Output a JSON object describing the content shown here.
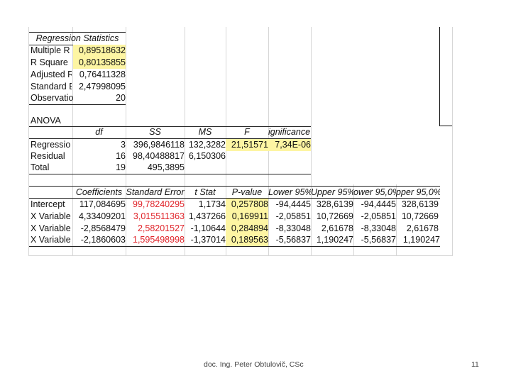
{
  "regression_statistics": {
    "title": "Regression Statistics",
    "rows": [
      {
        "label": "Multiple R",
        "value": "0,89518632"
      },
      {
        "label": "R Square",
        "value": "0,80135855"
      },
      {
        "label": "Adjusted R",
        "value": "0,76411328"
      },
      {
        "label": "Standard E",
        "value": "2,47998095"
      },
      {
        "label": "Observatio",
        "value": "20"
      }
    ]
  },
  "anova": {
    "title": "ANOVA",
    "headers": [
      "",
      "df",
      "SS",
      "MS",
      "F",
      "ignificance F"
    ],
    "rows": [
      {
        "label": "Regressio",
        "df": "3",
        "ss": "396,9846118",
        "ms": "132,3282",
        "f": "21,51571",
        "sig": "7,34E-06"
      },
      {
        "label": "Residual",
        "df": "16",
        "ss": "98,40488817",
        "ms": "6,150306",
        "f": "",
        "sig": ""
      },
      {
        "label": "Total",
        "df": "19",
        "ss": "495,3895",
        "ms": "",
        "f": "",
        "sig": ""
      }
    ]
  },
  "coefficients": {
    "headers": [
      "",
      "Coefficients",
      "Standard Error",
      "t Stat",
      "P-value",
      "Lower 95%",
      "Upper 95%",
      "ower 95,0%",
      "pper 95,0%"
    ],
    "rows": [
      {
        "label": "Intercept",
        "coef": "117,084695",
        "se": "99,78240295",
        "t": "1,1734",
        "p": "0,257808",
        "l95": "-94,4445",
        "u95": "328,6139",
        "l950": "-94,4445",
        "u950": "328,6139"
      },
      {
        "label": "X Variable",
        "coef": "4,33409201",
        "se": "3,015511363",
        "t": "1,437266",
        "p": "0,169911",
        "l95": "-2,05851",
        "u95": "10,72669",
        "l950": "-2,05851",
        "u950": "10,72669"
      },
      {
        "label": "X Variable",
        "coef": "-2,8568479",
        "se": "2,58201527",
        "t": "-1,10644",
        "p": "0,284894",
        "l95": "-8,33048",
        "u95": "2,61678",
        "l950": "-8,33048",
        "u950": "2,61678"
      },
      {
        "label": "X Variable",
        "coef": "-2,1860603",
        "se": "1,595498998",
        "t": "-1,37014",
        "p": "0,189563",
        "l95": "-5,56837",
        "u95": "1,190247",
        "l950": "-5,56837",
        "u950": "1,190247"
      }
    ]
  },
  "colors": {
    "highlight": "#fdf5a3",
    "red_text": "#e0242a"
  },
  "footer": {
    "author": "doc. Ing. Peter Obtulovič, CSc",
    "page": "11"
  }
}
